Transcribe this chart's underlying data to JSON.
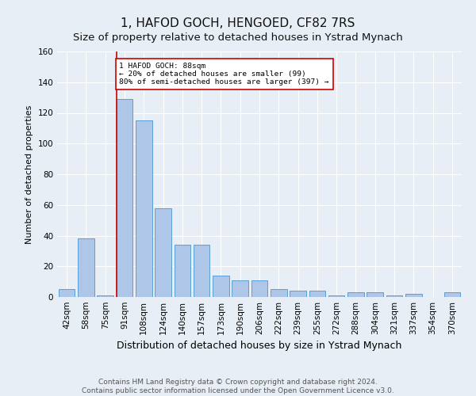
{
  "title": "1, HAFOD GOCH, HENGOED, CF82 7RS",
  "subtitle": "Size of property relative to detached houses in Ystrad Mynach",
  "xlabel": "Distribution of detached houses by size in Ystrad Mynach",
  "ylabel": "Number of detached properties",
  "categories": [
    "42sqm",
    "58sqm",
    "75sqm",
    "91sqm",
    "108sqm",
    "124sqm",
    "140sqm",
    "157sqm",
    "173sqm",
    "190sqm",
    "206sqm",
    "222sqm",
    "239sqm",
    "255sqm",
    "272sqm",
    "288sqm",
    "304sqm",
    "321sqm",
    "337sqm",
    "354sqm",
    "370sqm"
  ],
  "values": [
    5,
    38,
    1,
    129,
    115,
    58,
    34,
    34,
    14,
    11,
    11,
    5,
    4,
    4,
    1,
    3,
    3,
    1,
    2,
    0,
    3
  ],
  "bar_color": "#aec6e8",
  "bar_edge_color": "#5a9fd4",
  "background_color": "#e8eef5",
  "grid_color": "#ffffff",
  "vline_x_index": 3,
  "vline_color": "#cc0000",
  "annotation_text": "1 HAFOD GOCH: 88sqm\n← 20% of detached houses are smaller (99)\n80% of semi-detached houses are larger (397) →",
  "annotation_box_color": "#ffffff",
  "annotation_box_edge": "#cc0000",
  "ylim": [
    0,
    160
  ],
  "yticks": [
    0,
    20,
    40,
    60,
    80,
    100,
    120,
    140,
    160
  ],
  "footnote": "Contains HM Land Registry data © Crown copyright and database right 2024.\nContains public sector information licensed under the Open Government Licence v3.0.",
  "title_fontsize": 11,
  "subtitle_fontsize": 9.5,
  "xlabel_fontsize": 9,
  "ylabel_fontsize": 8,
  "tick_fontsize": 7.5,
  "footnote_fontsize": 6.5
}
